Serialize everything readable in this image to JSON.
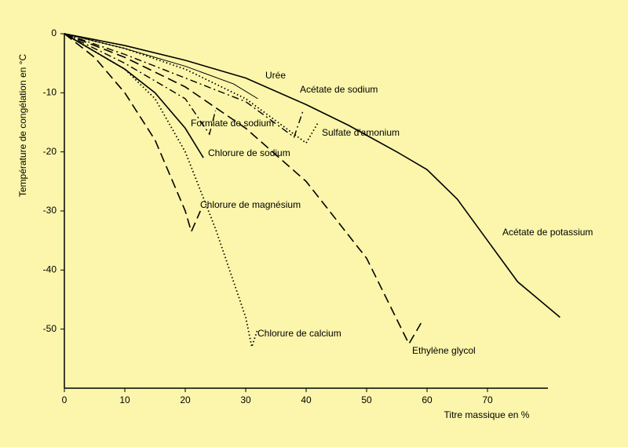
{
  "chart_data": {
    "type": "line",
    "xlabel": "Titre massique  en %",
    "ylabel": "Température de congélation en °C",
    "xlim": [
      0,
      80
    ],
    "ylim": [
      -60,
      0
    ],
    "xticks": [
      0,
      10,
      20,
      30,
      40,
      50,
      60,
      70
    ],
    "yticks": [
      0,
      -10,
      -20,
      -30,
      -40,
      -50
    ],
    "series": [
      {
        "name": "Urée",
        "color": "#000000",
        "style": "thin",
        "x": [
          0,
          10,
          20,
          28,
          32
        ],
        "values": [
          0,
          -2.5,
          -5.5,
          -8.5,
          -11
        ]
      },
      {
        "name": "Acétate de sodium",
        "color": "#000000",
        "style": "dashdot",
        "x": [
          0,
          10,
          20,
          30,
          38,
          39.5
        ],
        "values": [
          0,
          -3.5,
          -7.5,
          -11.5,
          -17.5,
          -13
        ]
      },
      {
        "name": "Sulfate d'amonium",
        "color": "#000000",
        "style": "dotted",
        "x": [
          0,
          10,
          20,
          30,
          40,
          42
        ],
        "values": [
          0,
          -2.5,
          -6,
          -11,
          -18.5,
          -15
        ]
      },
      {
        "name": "Formiate de sodium",
        "color": "#000000",
        "style": "dashdot",
        "x": [
          0,
          10,
          20,
          24,
          25
        ],
        "values": [
          0,
          -5,
          -11,
          -17,
          -13
        ]
      },
      {
        "name": "Chlorure de sodium",
        "color": "#000000",
        "style": "solid",
        "x": [
          0,
          10,
          15,
          20,
          23
        ],
        "values": [
          0,
          -6,
          -10,
          -16,
          -21
        ]
      },
      {
        "name": "Chlorure de magnésium",
        "color": "#000000",
        "style": "dashed",
        "x": [
          0,
          5,
          10,
          15,
          20,
          21,
          22.5
        ],
        "values": [
          0,
          -4,
          -10,
          -18,
          -30,
          -33.5,
          -30
        ]
      },
      {
        "name": "Chlorure de calcium",
        "color": "#000000",
        "style": "dotted",
        "x": [
          0,
          10,
          15,
          20,
          25,
          30,
          31,
          32
        ],
        "values": [
          0,
          -6,
          -11,
          -20,
          -33,
          -48,
          -53,
          -50
        ]
      },
      {
        "name": "Ethylène glycol",
        "color": "#000000",
        "style": "dashed",
        "x": [
          0,
          10,
          20,
          30,
          40,
          50,
          57,
          59
        ],
        "values": [
          0,
          -4,
          -9,
          -16,
          -25,
          -38,
          -52.5,
          -49
        ]
      },
      {
        "name": "Acétate de potassium",
        "color": "#000000",
        "style": "solid",
        "x": [
          0,
          10,
          20,
          30,
          40,
          47,
          55,
          60,
          65,
          70,
          75,
          82
        ],
        "values": [
          0,
          -2,
          -4.5,
          -7.5,
          -12,
          -15.5,
          -20,
          -23,
          -28,
          -35,
          -42,
          -48
        ]
      }
    ]
  }
}
